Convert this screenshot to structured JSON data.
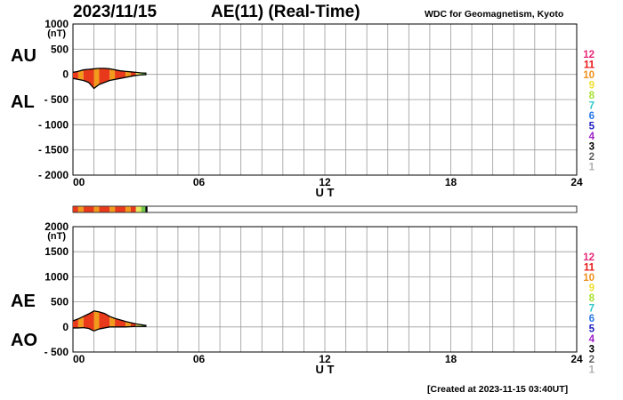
{
  "header": {
    "date": "2023/11/15",
    "title": "AE(11) (Real-Time)",
    "credit": "WDC for Geomagnetism, Kyoto"
  },
  "footer": {
    "created": "[Created at 2023-11-15 03:40UT]"
  },
  "colors": {
    "red": "#e83a1a",
    "orange": "#f29a1c",
    "light_yellow": "#e8e860",
    "green": "#6fc84a",
    "black": "#000000",
    "grid": "#9a9a9a"
  },
  "color_scale": {
    "labels": [
      "12",
      "11",
      "10",
      "9",
      "8",
      "7",
      "6",
      "5",
      "4",
      "3",
      "2",
      "1"
    ],
    "colors": [
      "#e8287a",
      "#e81818",
      "#f0901c",
      "#f0e030",
      "#a8e030",
      "#30c8c8",
      "#2878e8",
      "#2020c0",
      "#a020c8",
      "#000000",
      "#606060",
      "#b0b0b0"
    ]
  },
  "chart_data": [
    {
      "type": "area",
      "panel": "AU/AL",
      "side_labels": [
        "AU",
        "AL"
      ],
      "unit": "(nT)",
      "xlabel": "U T",
      "x_ticks": [
        "00",
        "06",
        "12",
        "18",
        "24"
      ],
      "xlim": [
        0,
        24
      ],
      "ylim": [
        -2000,
        1000
      ],
      "y_ticks": [
        "1000",
        "500",
        "0",
        "- 500",
        "- 1000",
        "- 1500",
        "- 2000"
      ],
      "grid": true,
      "series": [
        {
          "x": [
            0,
            0.25,
            0.5,
            0.75,
            1.0,
            1.25,
            1.5,
            1.75,
            2.0,
            2.25,
            2.5,
            2.75,
            3.0,
            3.25,
            3.5
          ],
          "values": [
            40,
            60,
            90,
            100,
            110,
            120,
            120,
            110,
            90,
            70,
            60,
            50,
            40,
            30,
            25
          ]
        },
        {
          "x": [
            0,
            0.25,
            0.5,
            0.75,
            1.0,
            1.25,
            1.5,
            1.75,
            2.0,
            2.25,
            2.5,
            2.75,
            3.0,
            3.25,
            3.5
          ],
          "values": [
            -80,
            -100,
            -120,
            -160,
            -280,
            -200,
            -160,
            -120,
            -100,
            -80,
            -60,
            -40,
            -20,
            -10,
            -5
          ]
        }
      ]
    },
    {
      "type": "area",
      "panel": "AE/AO",
      "side_labels": [
        "AE",
        "AO"
      ],
      "unit": "(nT)",
      "xlabel": "U T",
      "x_ticks": [
        "00",
        "06",
        "12",
        "18",
        "24"
      ],
      "xlim": [
        0,
        24
      ],
      "ylim": [
        -500,
        2000
      ],
      "y_ticks": [
        "2000",
        "1500",
        "1000",
        "500",
        "0",
        "- 500"
      ],
      "grid": true,
      "series": [
        {
          "x": [
            0,
            0.25,
            0.5,
            0.75,
            1.0,
            1.25,
            1.5,
            1.75,
            2.0,
            2.25,
            2.5,
            2.75,
            3.0,
            3.25,
            3.5
          ],
          "values": [
            120,
            160,
            210,
            260,
            320,
            300,
            270,
            210,
            170,
            140,
            110,
            85,
            60,
            45,
            30
          ]
        },
        {
          "x": [
            0,
            0.25,
            0.5,
            0.75,
            1.0,
            1.25,
            1.5,
            1.75,
            2.0,
            2.25,
            2.5,
            2.75,
            3.0,
            3.25,
            3.5
          ],
          "values": [
            -20,
            -20,
            -15,
            -30,
            -80,
            -40,
            -20,
            0,
            0,
            0,
            0,
            5,
            10,
            10,
            10
          ]
        }
      ]
    }
  ],
  "activity_bar": {
    "segments": [
      {
        "start": 0,
        "end": 0.25,
        "color": "#e83a1a"
      },
      {
        "start": 0.25,
        "end": 0.5,
        "color": "#f29a1c"
      },
      {
        "start": 0.5,
        "end": 1.0,
        "color": "#e83a1a"
      },
      {
        "start": 1.0,
        "end": 1.25,
        "color": "#f29a1c"
      },
      {
        "start": 1.25,
        "end": 1.75,
        "color": "#e83a1a"
      },
      {
        "start": 1.75,
        "end": 2.0,
        "color": "#f29a1c"
      },
      {
        "start": 2.0,
        "end": 2.5,
        "color": "#e83a1a"
      },
      {
        "start": 2.5,
        "end": 2.75,
        "color": "#f29a1c"
      },
      {
        "start": 2.75,
        "end": 3.0,
        "color": "#e83a1a"
      },
      {
        "start": 3.0,
        "end": 3.25,
        "color": "#e8e860"
      },
      {
        "start": 3.25,
        "end": 3.45,
        "color": "#6fc84a"
      },
      {
        "start": 3.45,
        "end": 3.55,
        "color": "#000000"
      }
    ]
  }
}
